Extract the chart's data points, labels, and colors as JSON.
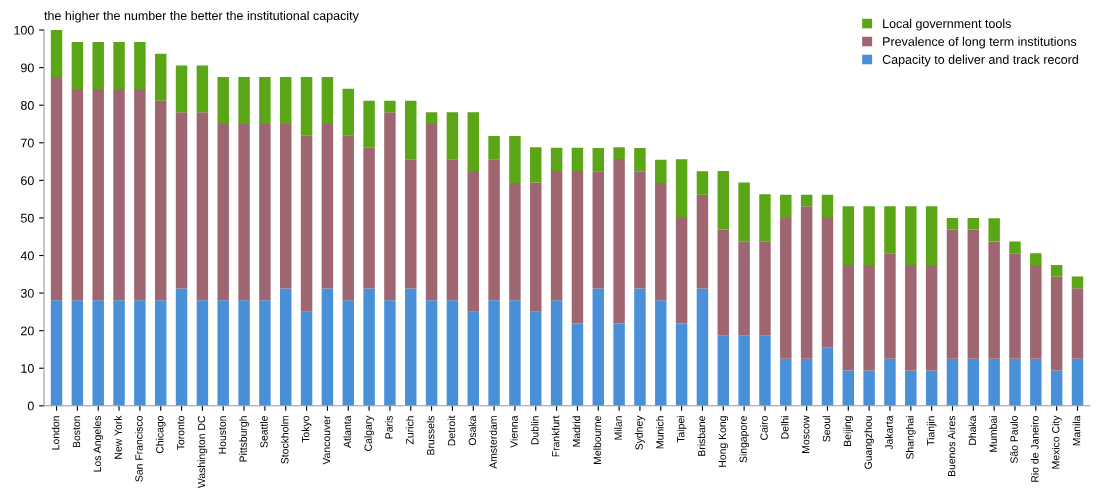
{
  "chart_data": {
    "type": "bar",
    "title": "the higher the number the better the institutional capacity",
    "categories": [
      "London",
      "Boston",
      "Los Angeles",
      "New York",
      "San Francisco",
      "Chicago",
      "Toronto",
      "Washington DC",
      "Houston",
      "Pittsburgh",
      "Seattle",
      "Stockholm",
      "Tokyo",
      "Vancouver",
      "Atlanta",
      "Calgary",
      "Paris",
      "Zurich",
      "Brussels",
      "Detroit",
      "Osaka",
      "Amsterdam",
      "Vienna",
      "Dublin",
      "Frankfurt",
      "Madrid",
      "Melbourne",
      "Milan",
      "Sydney",
      "Munich",
      "Taipei",
      "Brisbane",
      "Hong Kong",
      "Singapore",
      "Cairo",
      "Delhi",
      "Moscow",
      "Seoul",
      "Beijing",
      "Guangzhou",
      "Jakarta",
      "Shanghai",
      "Tianjin",
      "Buenos Aires",
      "Dhaka",
      "Mumbai",
      "São Paulo",
      "Rio de Janeiro",
      "Mexico City",
      "Manila"
    ],
    "stacked": true,
    "series": [
      {
        "name": "Capacity to deliver and track record",
        "color": "#4a90d9",
        "values": [
          28.1,
          28.1,
          28.1,
          28.1,
          28.1,
          28.1,
          31.2,
          28.1,
          28.1,
          28.1,
          28.1,
          31.2,
          25,
          31.2,
          28.1,
          31.2,
          28.1,
          31.2,
          28.1,
          28.1,
          25,
          28.1,
          28.1,
          25,
          28.1,
          21.9,
          31.2,
          21.9,
          31.2,
          28.1,
          21.9,
          31.2,
          18.8,
          18.8,
          18.8,
          12.5,
          12.5,
          15.6,
          9.4,
          9.4,
          12.5,
          9.4,
          9.4,
          12.5,
          12.5,
          12.5,
          12.5,
          12.5,
          9.4,
          12.5
        ]
      },
      {
        "name": "Prevalence of long term institutions",
        "color": "#9e6670",
        "values": [
          59.4,
          56.2,
          56.2,
          56.2,
          56.2,
          53.1,
          46.9,
          50,
          46.9,
          46.9,
          46.9,
          43.8,
          46.9,
          43.8,
          43.8,
          37.5,
          50,
          34.4,
          46.9,
          37.5,
          37.5,
          37.5,
          31.2,
          34.4,
          34.4,
          40.6,
          31.2,
          43.8,
          31.2,
          31.2,
          28.1,
          25,
          28.1,
          25,
          25,
          37.5,
          40.6,
          34.4,
          28.1,
          28.1,
          28.1,
          28.1,
          28.1,
          34.4,
          34.4,
          31.2,
          28.1,
          25,
          25,
          18.8
        ]
      },
      {
        "name": "Local government tools",
        "color": "#5ba617",
        "values": [
          12.5,
          12.5,
          12.5,
          12.5,
          12.5,
          12.5,
          12.5,
          12.5,
          12.5,
          12.5,
          12.5,
          12.5,
          15.6,
          12.5,
          12.5,
          12.5,
          3.1,
          15.6,
          3.1,
          12.5,
          15.6,
          6.2,
          12.5,
          9.4,
          6.2,
          6.2,
          6.2,
          3.1,
          6.2,
          6.2,
          15.6,
          6.2,
          15.6,
          15.6,
          12.5,
          6.2,
          3.1,
          6.2,
          15.6,
          15.6,
          12.5,
          15.6,
          15.6,
          3.1,
          3.1,
          6.2,
          3.1,
          3.1,
          3.1,
          3.1
        ]
      }
    ],
    "ylim": [
      0,
      100
    ],
    "yticks": [
      0,
      10,
      20,
      30,
      40,
      50,
      60,
      70,
      80,
      90,
      100
    ],
    "grid": false,
    "legend": "top right"
  }
}
